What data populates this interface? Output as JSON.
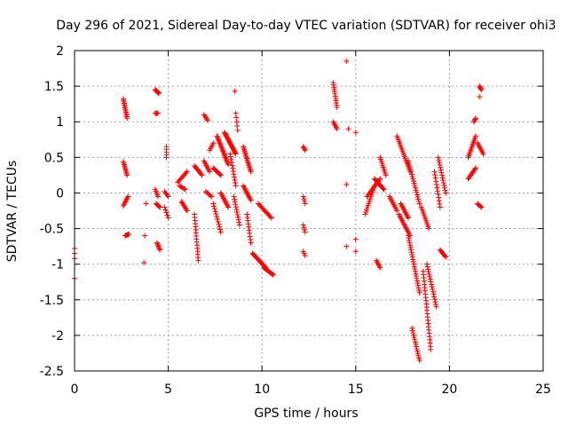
{
  "chart_data": {
    "type": "scatter",
    "title": "Day 296 of 2021, Sidereal Day-to-day VTEC variation (SDTVAR) for receiver ohi3",
    "xlabel": "GPS time / hours",
    "ylabel": "SDTVAR / TECUs",
    "xlim": [
      0,
      25
    ],
    "ylim": [
      -2.5,
      2
    ],
    "xticks": [
      "0",
      "5",
      "10",
      "15",
      "20",
      "25"
    ],
    "yticks": [
      "2",
      "1.5",
      "1",
      "0.5",
      "0",
      "-0.5",
      "-1",
      "-1.5",
      "-2",
      "-2.5"
    ],
    "grid": true,
    "marker": "+",
    "color": "#ff0000",
    "segments": [
      [
        0.0,
        -0.78,
        0.0,
        -0.92,
        3
      ],
      [
        0.0,
        -1.2,
        0.0,
        -1.2,
        1
      ],
      [
        2.6,
        1.32,
        2.8,
        1.05,
        14
      ],
      [
        2.6,
        0.44,
        2.8,
        0.25,
        10
      ],
      [
        2.6,
        -0.18,
        2.85,
        -0.05,
        8
      ],
      [
        2.7,
        -0.6,
        2.9,
        -0.58,
        6
      ],
      [
        3.8,
        -0.15,
        3.8,
        -0.15,
        1
      ],
      [
        3.75,
        -0.6,
        3.75,
        -0.6,
        1
      ],
      [
        3.7,
        -0.98,
        3.7,
        -0.98,
        1
      ],
      [
        4.3,
        1.45,
        4.5,
        1.4,
        12
      ],
      [
        4.3,
        1.12,
        4.45,
        1.12,
        4
      ],
      [
        4.3,
        0.05,
        4.45,
        -0.05,
        5
      ],
      [
        4.35,
        -0.15,
        4.55,
        -0.2,
        6
      ],
      [
        4.4,
        -0.7,
        4.55,
        -0.8,
        7
      ],
      [
        4.9,
        0.65,
        4.9,
        0.5,
        5
      ],
      [
        4.8,
        0.02,
        5.0,
        -0.05,
        5
      ],
      [
        4.8,
        -0.2,
        5.0,
        -0.35,
        5
      ],
      [
        5.5,
        0.15,
        6.0,
        0.3,
        10
      ],
      [
        5.6,
        0.1,
        5.9,
        0.05,
        6
      ],
      [
        5.7,
        -0.12,
        6.0,
        -0.25,
        8
      ],
      [
        6.4,
        0.38,
        6.8,
        0.25,
        10
      ],
      [
        6.4,
        -0.3,
        6.6,
        -0.95,
        16
      ],
      [
        6.9,
        1.1,
        7.1,
        1.02,
        5
      ],
      [
        6.9,
        0.45,
        7.2,
        0.3,
        8
      ],
      [
        7.0,
        0.02,
        7.3,
        -0.05,
        6
      ],
      [
        7.2,
        0.6,
        7.4,
        0.7,
        5
      ],
      [
        7.4,
        0.35,
        7.8,
        0.25,
        10
      ],
      [
        7.4,
        -0.15,
        7.8,
        -0.55,
        12
      ],
      [
        7.6,
        0.8,
        8.2,
        0.4,
        25
      ],
      [
        7.8,
        0.0,
        8.2,
        -0.2,
        12
      ],
      [
        8.0,
        0.85,
        8.6,
        0.55,
        25
      ],
      [
        8.3,
        0.55,
        8.6,
        0.1,
        12
      ],
      [
        8.5,
        -0.05,
        8.8,
        -0.45,
        12
      ],
      [
        8.6,
        1.12,
        8.7,
        0.88,
        5
      ],
      [
        8.55,
        1.43,
        8.55,
        1.43,
        1
      ],
      [
        9.0,
        0.65,
        9.4,
        0.3,
        18
      ],
      [
        9.0,
        0.1,
        9.4,
        -0.1,
        12
      ],
      [
        9.2,
        -0.3,
        9.4,
        -0.7,
        10
      ],
      [
        9.5,
        -0.85,
        10.2,
        -1.05,
        20
      ],
      [
        9.8,
        -0.15,
        10.5,
        -0.35,
        14
      ],
      [
        10.1,
        -1.05,
        10.6,
        -1.15,
        12
      ],
      [
        12.2,
        0.65,
        12.3,
        0.6,
        4
      ],
      [
        12.2,
        -0.05,
        12.3,
        -0.15,
        4
      ],
      [
        12.2,
        -0.45,
        12.3,
        -0.55,
        4
      ],
      [
        12.2,
        -0.82,
        12.3,
        -0.88,
        3
      ],
      [
        13.8,
        1.55,
        14.0,
        1.2,
        12
      ],
      [
        13.8,
        1.0,
        14.0,
        0.9,
        6
      ],
      [
        14.5,
        1.85,
        14.5,
        1.85,
        1
      ],
      [
        14.6,
        0.9,
        14.6,
        0.9,
        1
      ],
      [
        14.5,
        0.12,
        14.5,
        0.12,
        1
      ],
      [
        14.5,
        -0.75,
        14.5,
        -0.75,
        1
      ],
      [
        15.0,
        0.85,
        15.0,
        0.85,
        1
      ],
      [
        15.0,
        -0.65,
        15.0,
        -0.65,
        1
      ],
      [
        15.0,
        -0.82,
        15.0,
        -0.82,
        1
      ],
      [
        15.5,
        -0.3,
        16.0,
        0.1,
        14
      ],
      [
        15.6,
        -0.05,
        16.3,
        0.2,
        14
      ],
      [
        16.0,
        0.2,
        16.5,
        0.05,
        12
      ],
      [
        16.1,
        -0.95,
        16.3,
        -1.05,
        6
      ],
      [
        16.3,
        0.5,
        16.6,
        0.25,
        10
      ],
      [
        16.8,
        -0.05,
        17.2,
        -0.25,
        10
      ],
      [
        17.2,
        0.8,
        17.9,
        0.3,
        20
      ],
      [
        17.4,
        -0.15,
        17.8,
        -0.35,
        12
      ],
      [
        17.8,
        0.45,
        18.4,
        -0.15,
        20
      ],
      [
        17.3,
        -0.3,
        17.9,
        -0.6,
        15
      ],
      [
        17.8,
        -0.6,
        18.4,
        -1.4,
        25
      ],
      [
        18.0,
        -1.9,
        18.4,
        -2.35,
        15
      ],
      [
        18.5,
        -0.2,
        18.9,
        -0.5,
        12
      ],
      [
        18.6,
        -1.1,
        19.0,
        -2.2,
        25
      ],
      [
        18.8,
        -1.0,
        19.3,
        -1.6,
        18
      ],
      [
        19.2,
        0.3,
        19.5,
        -0.2,
        12
      ],
      [
        19.4,
        0.5,
        19.8,
        0.0,
        15
      ],
      [
        19.5,
        -0.8,
        19.8,
        -0.9,
        8
      ],
      [
        21.0,
        0.5,
        21.4,
        0.8,
        14
      ],
      [
        21.0,
        0.2,
        21.4,
        0.35,
        10
      ],
      [
        21.3,
        1.0,
        21.4,
        1.05,
        4
      ],
      [
        21.6,
        1.5,
        21.7,
        1.45,
        5
      ],
      [
        21.5,
        0.7,
        21.8,
        0.55,
        8
      ],
      [
        21.5,
        -0.15,
        21.7,
        -0.2,
        5
      ],
      [
        21.6,
        1.35,
        21.6,
        1.35,
        1
      ]
    ]
  }
}
